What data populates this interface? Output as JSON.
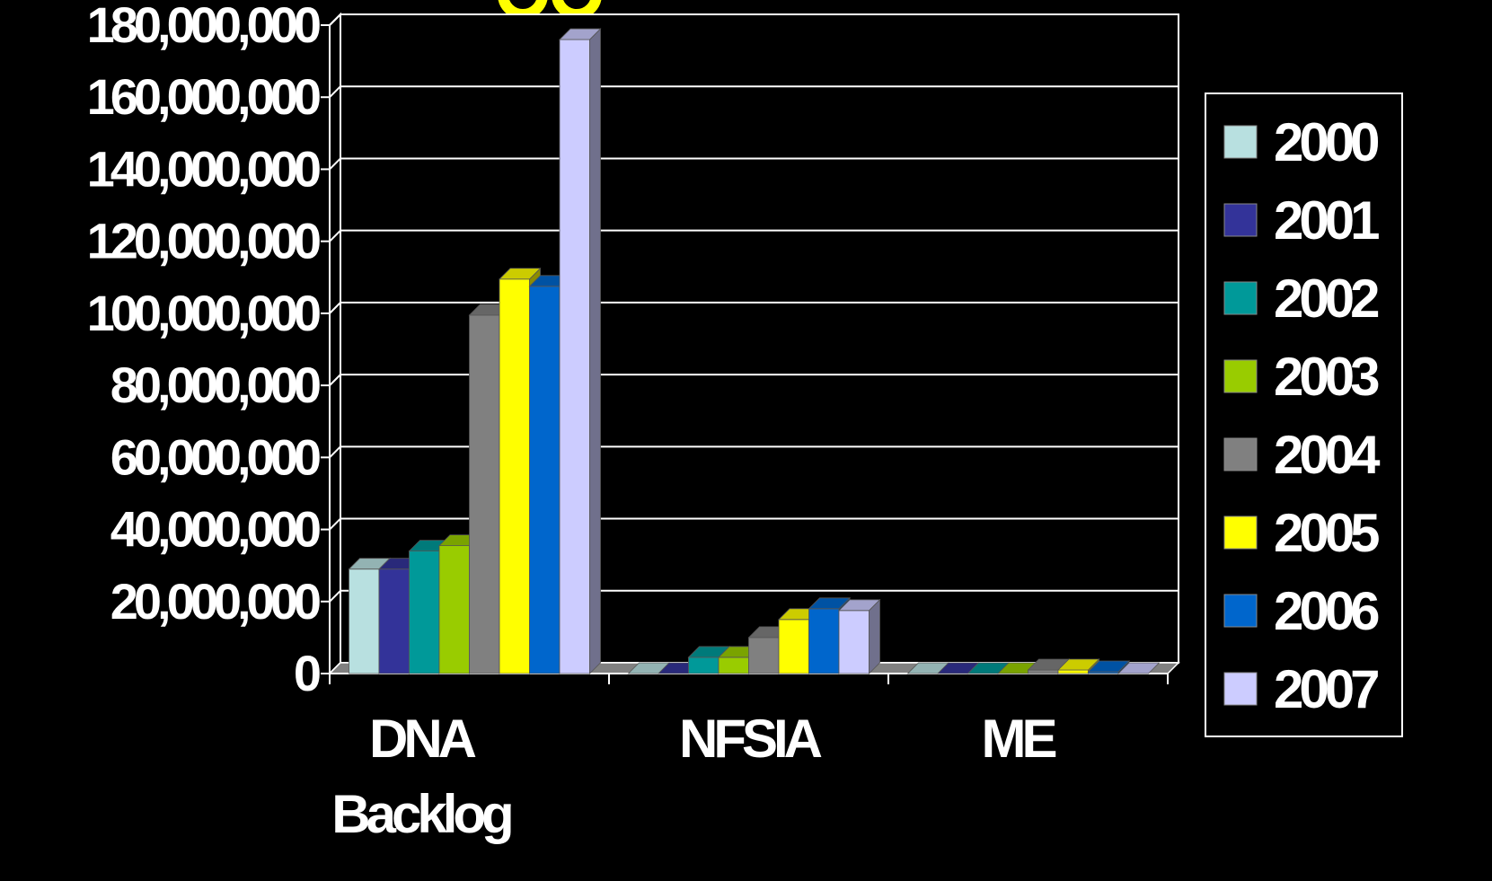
{
  "chart_data": {
    "type": "bar",
    "title": "",
    "xlabel": "",
    "ylabel": "",
    "ylim": [
      0,
      180000000
    ],
    "yticks": [
      "0",
      "20,000,000",
      "40,000,000",
      "60,000,000",
      "80,000,000",
      "100,000,000",
      "120,000,000",
      "140,000,000",
      "160,000,000",
      "180,000,000"
    ],
    "categories": [
      [
        "DNA",
        "Backlog"
      ],
      [
        "NFSIA"
      ],
      [
        "ME"
      ]
    ],
    "grid": true,
    "legend_position": "right",
    "series": [
      {
        "name": "2000",
        "color": "#b8e0e0",
        "values": [
          29000000,
          0,
          0
        ]
      },
      {
        "name": "2001",
        "color": "#333399",
        "values": [
          29000000,
          0,
          0
        ]
      },
      {
        "name": "2002",
        "color": "#009999",
        "values": [
          34000000,
          4500000,
          0
        ]
      },
      {
        "name": "2003",
        "color": "#99cc00",
        "values": [
          35500000,
          4500000,
          0
        ]
      },
      {
        "name": "2004",
        "color": "#808080",
        "values": [
          99500000,
          10000000,
          1000000
        ]
      },
      {
        "name": "2005",
        "color": "#ffff00",
        "values": [
          109500000,
          15000000,
          1000000
        ]
      },
      {
        "name": "2006",
        "color": "#0066cc",
        "values": [
          107500000,
          18000000,
          500000
        ]
      },
      {
        "name": "2007",
        "color": "#ccccff",
        "values": [
          176000000,
          17500000,
          0
        ]
      }
    ]
  }
}
